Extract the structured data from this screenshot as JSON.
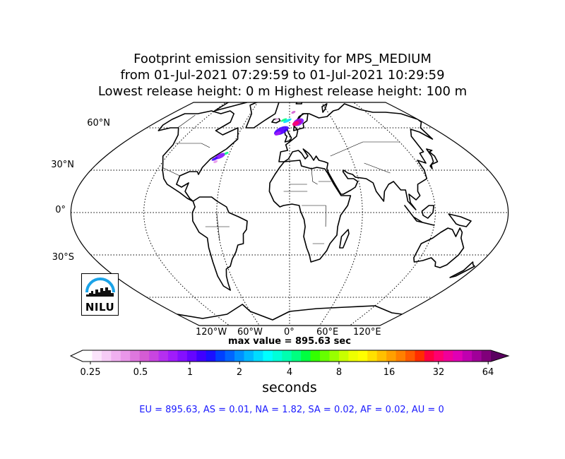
{
  "header": {
    "line1": "Footprint emission sensitivity for MPS_MEDIUM",
    "line2": "from 01-Jul-2021 07:29:59 to 01-Jul-2021 10:29:59",
    "line3": "Lowest release height: 0 m       Highest release height: 100 m"
  },
  "map": {
    "projection": "robinson",
    "lat_labels": [
      "60°N",
      "30°N",
      "0°",
      "30°S"
    ],
    "lon_labels": [
      "120°W",
      "60°W",
      "0°",
      "60°E",
      "120°E"
    ],
    "max_value_label": "max value = 895.63 sec"
  },
  "colorbar": {
    "tick_labels": [
      "0.25",
      "0.5",
      "1",
      "2",
      "4",
      "8",
      "16",
      "32",
      "64"
    ],
    "units": "seconds",
    "scale": "log2",
    "colors": [
      "#ffffff",
      "#fbe4fb",
      "#f6ccf6",
      "#f0b0f0",
      "#e996e9",
      "#de77de",
      "#d45cd4",
      "#c845e0",
      "#b52ff0",
      "#a01cfb",
      "#8410ff",
      "#6505ff",
      "#3f00ff",
      "#1a10ff",
      "#0040ff",
      "#0065ff",
      "#0090ff",
      "#00b8ff",
      "#00dcff",
      "#00ffff",
      "#00ffd9",
      "#00ffb0",
      "#00ff80",
      "#00ff40",
      "#33ff00",
      "#66ff00",
      "#99ff00",
      "#c8ff00",
      "#eeff00",
      "#ffff00",
      "#ffe000",
      "#ffc000",
      "#ffa000",
      "#ff8000",
      "#ff5a00",
      "#ff2d00",
      "#ff0040",
      "#ff0070",
      "#f0009a",
      "#e000b5",
      "#c000b0",
      "#a00099",
      "#80007a"
    ]
  },
  "summary": "EU = 895.63,  AS = 0.01,  NA = 1.82,  SA = 0.02,  AF = 0.02,  AU = 0",
  "logo": {
    "text": "NILU",
    "color": "#1aa3e8"
  }
}
